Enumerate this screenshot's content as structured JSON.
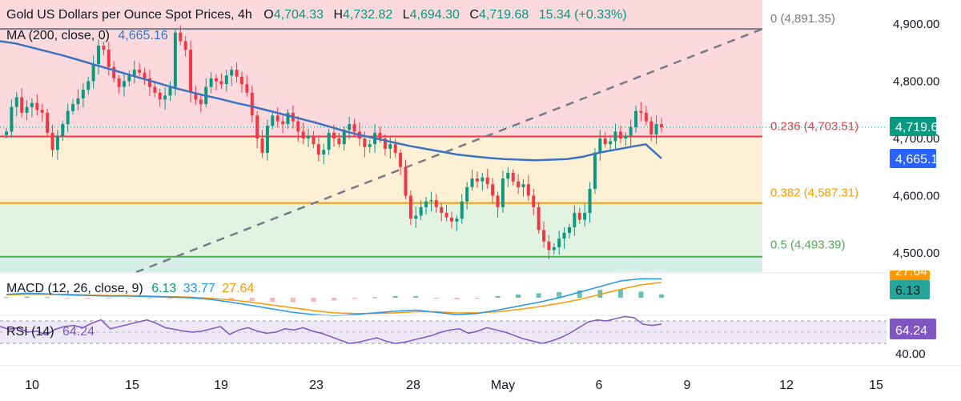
{
  "header": {
    "title": "Gold US Dollars per Ounce Spot Prices, 4h",
    "open_label": "O",
    "open": "4,704.33",
    "high_label": "H",
    "high": "4,732.82",
    "low_label": "L",
    "low": "4,694.30",
    "close_label": "C",
    "close": "4,719.68",
    "change": "15.34 (+0.33%)"
  },
  "ma_legend": {
    "label": "MA (200, close, 0)",
    "value": "4,665.16"
  },
  "macd_legend": {
    "label": "MACD (12, 26, close, 9)",
    "v1": "6.13",
    "v2": "33.77",
    "v3": "27.64"
  },
  "rsi_legend": {
    "label": "RSI (14)",
    "value": "64.24"
  },
  "colors": {
    "up": "#089981",
    "down": "#f23645",
    "ma": "#3c73c0",
    "fib_red": "#f23645",
    "fib_orange": "#ff9800",
    "fib_green": "#4caf50",
    "zone_red": "#fbd9dc",
    "zone_orange": "#fef0d4",
    "zone_green": "#e3f3e2",
    "zone_teal": "#d6efe9",
    "macd_line": "#2196f3",
    "signal_line": "#ff9800",
    "rsi_line": "#7e57c2",
    "rsi_band": "#ede7f6"
  },
  "chart_data": {
    "type": "candlestick",
    "timeframe": "4h",
    "x_tick_labels": [
      "10",
      "15",
      "19",
      "23",
      "28",
      "May",
      "6",
      "9",
      "12",
      "15"
    ],
    "y_ticks": [
      "4,900.00",
      "4,800.00",
      "4,700.00",
      "4,600.00",
      "4,500.00"
    ],
    "ylim": [
      4460,
      4930
    ],
    "last_price": "4,719.68",
    "ma_price_label": "4,665.16",
    "fib_levels": [
      {
        "ratio": "0",
        "price": 4891.35,
        "label": "0 (4,891.35)"
      },
      {
        "ratio": "0.236",
        "price": 4703.51,
        "label": "0.236 (4,703.51)"
      },
      {
        "ratio": "0.382",
        "price": 4587.31,
        "label": "0.382 (4,587.31)"
      },
      {
        "ratio": "0.5",
        "price": 4493.39,
        "label": "0.5 (4,493.39)"
      }
    ],
    "trendline": {
      "from_price": 4460,
      "to_price": 4891.35
    },
    "close_series": [
      4712,
      4755,
      4772,
      4745,
      4755,
      4762,
      4750,
      4745,
      4710,
      4680,
      4705,
      4725,
      4748,
      4760,
      4770,
      4785,
      4800,
      4830,
      4862,
      4855,
      4825,
      4805,
      4790,
      4800,
      4810,
      4820,
      4815,
      4805,
      4790,
      4780,
      4768,
      4775,
      4790,
      4885,
      4870,
      4855,
      4780,
      4768,
      4760,
      4790,
      4805,
      4800,
      4795,
      4810,
      4820,
      4808,
      4795,
      4780,
      4740,
      4700,
      4675,
      4722,
      4740,
      4730,
      4725,
      4745,
      4730,
      4712,
      4700,
      4705,
      4690,
      4672,
      4680,
      4710,
      4700,
      4690,
      4715,
      4725,
      4712,
      4700,
      4685,
      4690,
      4710,
      4700,
      4682,
      4690,
      4675,
      4650,
      4600,
      4560,
      4565,
      4580,
      4590,
      4592,
      4580,
      4570,
      4562,
      4555,
      4560,
      4590,
      4615,
      4630,
      4625,
      4632,
      4620,
      4600,
      4580,
      4630,
      4640,
      4625,
      4615,
      4620,
      4600,
      4580,
      4540,
      4520,
      4505,
      4510,
      4525,
      4535,
      4545,
      4570,
      4558,
      4570,
      4612,
      4675,
      4700,
      4690,
      4695,
      4712,
      4700,
      4705,
      4720,
      4748,
      4745,
      4730,
      4707,
      4725,
      4719.68
    ],
    "ma200_series": [
      4870,
      4866,
      4859,
      4852,
      4845,
      4837,
      4829,
      4821,
      4813,
      4805,
      4797,
      4789,
      4782,
      4775,
      4769,
      4762,
      4756,
      4749,
      4742,
      4735,
      4728,
      4720,
      4712,
      4705,
      4699,
      4693,
      4687,
      4682,
      4677,
      4672,
      4669,
      4666,
      4664,
      4663,
      4662,
      4663,
      4664,
      4668,
      4675,
      4680,
      4685,
      4690,
      4665.16
    ],
    "macd": {
      "macd_last": 33.77,
      "signal_last": 27.64,
      "histogram_last": 6.13,
      "macd_series": [
        6,
        8,
        7,
        5,
        4,
        3,
        3,
        2,
        1,
        0,
        -3,
        -8,
        -14,
        -20,
        -26,
        -30,
        -32,
        -30,
        -27,
        -24,
        -22,
        -26,
        -30,
        -28,
        -22,
        -15,
        -8,
        0,
        10,
        20,
        30,
        34,
        33.77
      ],
      "signal_series": [
        5,
        6,
        6,
        6,
        5,
        4,
        4,
        3,
        2,
        1,
        -1,
        -4,
        -8,
        -13,
        -18,
        -23,
        -27,
        -28,
        -28,
        -27,
        -25,
        -25,
        -27,
        -27,
        -25,
        -21,
        -16,
        -10,
        -3,
        6,
        15,
        23,
        27.64
      ],
      "histogram_series": [
        1,
        2,
        1,
        -1,
        -1,
        -1,
        -1,
        -1,
        -1,
        -1,
        -2,
        -4,
        -6,
        -7,
        -8,
        -7,
        -5,
        -2,
        1,
        3,
        3,
        -1,
        -3,
        -1,
        3,
        6,
        8,
        10,
        13,
        14,
        15,
        11,
        6.13
      ]
    },
    "rsi": {
      "last": 64.24,
      "tick_label": "40.00",
      "band": [
        30,
        70
      ],
      "series": [
        60,
        55,
        58,
        50,
        52,
        45,
        55,
        60,
        62,
        58,
        66,
        72,
        56,
        60,
        64,
        68,
        72,
        66,
        58,
        55,
        52,
        50,
        52,
        56,
        60,
        46,
        54,
        58,
        52,
        48,
        50,
        56,
        54,
        58,
        52,
        48,
        42,
        36,
        30,
        32,
        36,
        40,
        34,
        30,
        32,
        36,
        40,
        44,
        50,
        54,
        56,
        48,
        52,
        58,
        54,
        50,
        44,
        38,
        34,
        30,
        34,
        40,
        48,
        58,
        68,
        72,
        70,
        74,
        78,
        76,
        64,
        62,
        64.24
      ]
    }
  }
}
